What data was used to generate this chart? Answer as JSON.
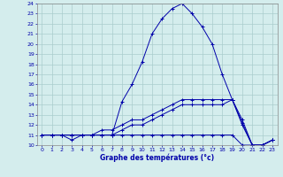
{
  "xlabel": "Graphe des températures (°c)",
  "bg_color": "#d4eded",
  "grid_color": "#aacccc",
  "line_color": "#0000aa",
  "xlim": [
    -0.5,
    23.5
  ],
  "ylim": [
    10,
    24
  ],
  "yticks": [
    10,
    11,
    12,
    13,
    14,
    15,
    16,
    17,
    18,
    19,
    20,
    21,
    22,
    23,
    24
  ],
  "xticks": [
    0,
    1,
    2,
    3,
    4,
    5,
    6,
    7,
    8,
    9,
    10,
    11,
    12,
    13,
    14,
    15,
    16,
    17,
    18,
    19,
    20,
    21,
    22,
    23
  ],
  "line1_x": [
    0,
    1,
    2,
    3,
    4,
    5,
    6,
    7,
    8,
    9,
    10,
    11,
    12,
    13,
    14,
    15,
    16,
    17,
    18,
    19,
    20,
    21,
    22,
    23
  ],
  "line1_y": [
    11,
    11,
    11,
    11,
    11,
    11,
    11,
    11,
    11,
    11,
    11,
    11,
    11,
    11,
    11,
    11,
    11,
    11,
    11,
    11,
    10,
    10,
    10,
    10.5
  ],
  "line2_x": [
    0,
    1,
    2,
    3,
    4,
    5,
    6,
    7,
    8,
    9,
    10,
    11,
    12,
    13,
    14,
    15,
    16,
    17,
    18,
    19,
    20,
    21,
    22,
    23
  ],
  "line2_y": [
    11,
    11,
    11,
    11,
    11,
    11,
    11.5,
    11.5,
    12,
    12.5,
    12.5,
    13,
    13.5,
    14,
    14.5,
    14.5,
    14.5,
    14.5,
    14.5,
    14.5,
    12.5,
    10,
    10,
    10.5
  ],
  "line3_x": [
    0,
    1,
    2,
    3,
    4,
    5,
    6,
    7,
    8,
    9,
    10,
    11,
    12,
    13,
    14,
    15,
    16,
    17,
    18,
    19,
    20,
    21,
    22,
    23
  ],
  "line3_y": [
    11,
    11,
    11,
    10.5,
    11,
    11,
    11,
    11,
    11.5,
    12,
    12,
    12.5,
    13,
    13.5,
    14,
    14,
    14,
    14,
    14,
    14.5,
    12,
    10,
    10,
    10.5
  ],
  "line4_x": [
    0,
    1,
    2,
    3,
    4,
    5,
    6,
    7,
    8,
    9,
    10,
    11,
    12,
    13,
    14,
    15,
    16,
    17,
    18,
    19,
    20,
    21,
    22,
    23
  ],
  "line4_y": [
    11,
    11,
    11,
    11,
    11,
    11,
    11,
    11,
    14.3,
    16,
    18.2,
    21,
    22.5,
    23.5,
    24,
    23,
    21.7,
    20,
    17,
    14.5,
    12.2,
    10,
    10,
    10.5
  ]
}
